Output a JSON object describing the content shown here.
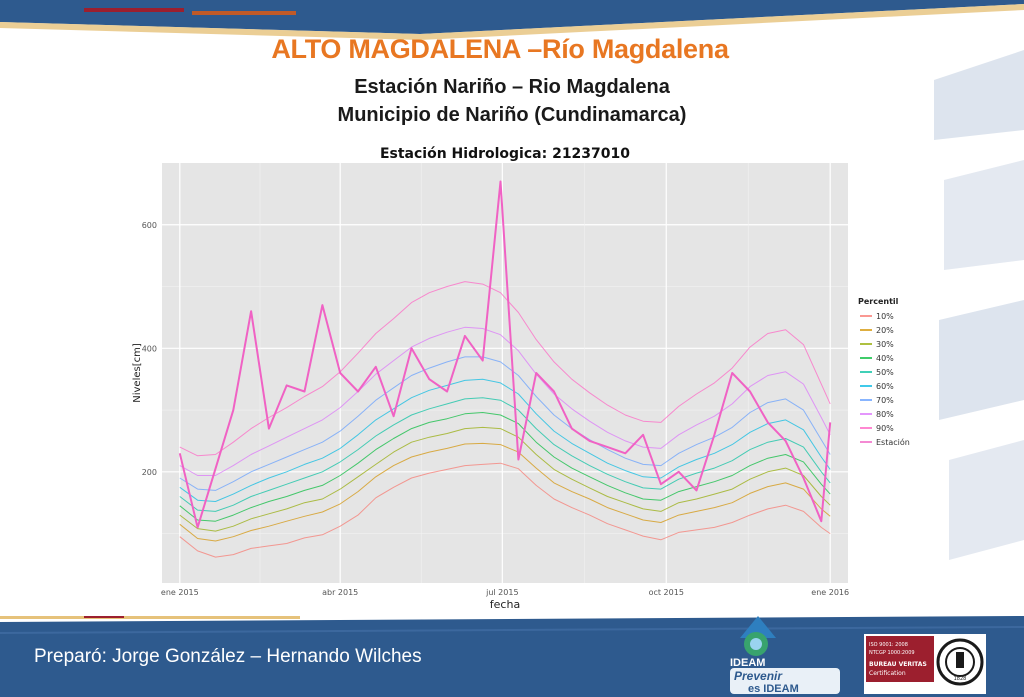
{
  "header": {
    "title": "ALTO MAGDALENA –Río Magdalena",
    "subtitle_line1": "Estación Nariño – Rio Magdalena",
    "subtitle_line2": "Municipio de Nariño (Cundinamarca)"
  },
  "footer": {
    "prepared_by": "Preparó: Jorge González – Hernando Wilches",
    "logo_ideam_text": "IDEAM",
    "logo_prevenir_line1": "Prevenir",
    "logo_prevenir_line2": "es IDEAM",
    "cert_line1": "ISO 9001: 2008",
    "cert_line2": "NTCGP 1000:2009",
    "cert_line3": "BUREAU VERITAS",
    "cert_line4": "Certification",
    "cert_year": "1828"
  },
  "colors": {
    "title": "#e87722",
    "band_blue": "#2e5a8e",
    "plot_bg": "#e5e5e5",
    "estacion": "#f062c4"
  },
  "chart_data": {
    "type": "line",
    "title": "Estación Hidrologica: 21237010",
    "xlabel": "fecha",
    "ylabel": "Niveles[cm]",
    "x_ticks": [
      "ene 2015",
      "abr 2015",
      "jul 2015",
      "oct 2015",
      "ene 2016"
    ],
    "x_tick_days": [
      0,
      90,
      181,
      273,
      365
    ],
    "y_ticks": [
      200,
      400,
      600
    ],
    "ylim": [
      20,
      700
    ],
    "xlim_days": [
      -10,
      375
    ],
    "grid": true,
    "legend_title": "Percentil",
    "legend_placement": "right",
    "days": [
      0,
      10,
      20,
      30,
      40,
      50,
      60,
      70,
      80,
      90,
      100,
      110,
      120,
      130,
      140,
      150,
      160,
      170,
      180,
      190,
      200,
      210,
      220,
      230,
      240,
      250,
      260,
      270,
      280,
      290,
      300,
      310,
      320,
      330,
      340,
      350,
      360,
      365
    ],
    "series": [
      {
        "name": "10%",
        "color": "#f8766d",
        "values": [
          95,
          72,
          62,
          66,
          76,
          80,
          84,
          93,
          98,
          112,
          130,
          158,
          175,
          190,
          198,
          204,
          210,
          212,
          214,
          205,
          178,
          156,
          142,
          130,
          116,
          106,
          96,
          90,
          102,
          106,
          110,
          118,
          130,
          140,
          146,
          136,
          110,
          100
        ]
      },
      {
        "name": "20%",
        "color": "#d39200",
        "values": [
          115,
          92,
          88,
          95,
          105,
          112,
          120,
          128,
          135,
          148,
          168,
          192,
          210,
          224,
          232,
          238,
          245,
          246,
          244,
          232,
          206,
          182,
          168,
          156,
          142,
          132,
          122,
          118,
          130,
          136,
          142,
          150,
          165,
          176,
          182,
          172,
          140,
          128
        ]
      },
      {
        "name": "30%",
        "color": "#93aa00",
        "values": [
          130,
          108,
          104,
          112,
          124,
          132,
          140,
          150,
          156,
          172,
          192,
          212,
          232,
          248,
          256,
          262,
          270,
          272,
          270,
          256,
          228,
          204,
          188,
          174,
          160,
          150,
          140,
          136,
          150,
          156,
          164,
          172,
          188,
          200,
          206,
          194,
          160,
          146
        ]
      },
      {
        "name": "40%",
        "color": "#00ba38",
        "values": [
          145,
          122,
          120,
          130,
          142,
          152,
          160,
          170,
          178,
          194,
          214,
          236,
          254,
          270,
          280,
          286,
          294,
          296,
          292,
          278,
          248,
          224,
          206,
          192,
          178,
          166,
          156,
          154,
          168,
          176,
          184,
          194,
          210,
          222,
          228,
          216,
          180,
          164
        ]
      },
      {
        "name": "50%",
        "color": "#00c19f",
        "values": [
          160,
          138,
          136,
          146,
          160,
          170,
          180,
          190,
          200,
          216,
          236,
          258,
          276,
          292,
          302,
          310,
          318,
          320,
          316,
          300,
          270,
          244,
          226,
          210,
          196,
          184,
          174,
          172,
          188,
          198,
          206,
          218,
          236,
          248,
          254,
          240,
          200,
          182
        ]
      },
      {
        "name": "60%",
        "color": "#00b9e3",
        "values": [
          175,
          154,
          152,
          164,
          178,
          190,
          200,
          212,
          222,
          238,
          260,
          284,
          302,
          320,
          332,
          340,
          348,
          350,
          344,
          326,
          294,
          266,
          246,
          230,
          214,
          202,
          192,
          190,
          208,
          220,
          230,
          244,
          264,
          278,
          284,
          268,
          224,
          204
        ]
      },
      {
        "name": "70%",
        "color": "#619cff",
        "values": [
          190,
          172,
          170,
          184,
          200,
          212,
          224,
          236,
          248,
          266,
          290,
          316,
          336,
          356,
          368,
          378,
          386,
          386,
          378,
          356,
          322,
          292,
          270,
          252,
          236,
          222,
          212,
          210,
          230,
          244,
          256,
          272,
          296,
          312,
          318,
          300,
          252,
          228
        ]
      },
      {
        "name": "80%",
        "color": "#db72fb",
        "values": [
          210,
          194,
          194,
          210,
          228,
          242,
          256,
          270,
          284,
          304,
          330,
          358,
          380,
          402,
          416,
          426,
          434,
          432,
          422,
          396,
          358,
          326,
          302,
          282,
          264,
          250,
          240,
          238,
          260,
          276,
          290,
          310,
          338,
          356,
          362,
          342,
          288,
          260
        ]
      },
      {
        "name": "90%",
        "color": "#ff61c3",
        "values": [
          240,
          226,
          228,
          248,
          270,
          288,
          304,
          322,
          338,
          362,
          392,
          424,
          448,
          474,
          490,
          500,
          508,
          504,
          490,
          458,
          414,
          378,
          350,
          328,
          308,
          292,
          282,
          280,
          306,
          326,
          344,
          368,
          402,
          424,
          430,
          406,
          342,
          310
        ]
      },
      {
        "name": "Estación",
        "color": "#f062c4",
        "values": [
          230,
          110,
          205,
          300,
          460,
          270,
          340,
          330,
          470,
          360,
          330,
          370,
          290,
          400,
          350,
          330,
          420,
          380,
          670,
          220,
          360,
          330,
          270,
          250,
          240,
          230,
          260,
          180,
          200,
          170,
          260,
          360,
          330,
          280,
          250,
          190,
          120,
          280
        ]
      }
    ]
  }
}
